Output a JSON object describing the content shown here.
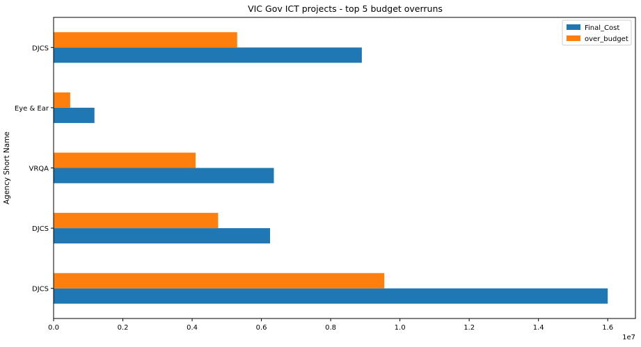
{
  "chart_data": {
    "type": "bar",
    "orientation": "horizontal",
    "title": "VIC Gov ICT projects - top 5 budget overruns",
    "xlabel": "",
    "ylabel": "Agency Short Name",
    "x_scale_label": "1e7",
    "xlim": [
      0,
      1.68
    ],
    "xticks": [
      0.0,
      0.2,
      0.4,
      0.6,
      0.8,
      1.0,
      1.2,
      1.4,
      1.6
    ],
    "xtick_labels": [
      "0.0",
      "0.2",
      "0.4",
      "0.6",
      "0.8",
      "1.0",
      "1.2",
      "1.4",
      "1.6"
    ],
    "categories": [
      "DJCS",
      "DJCS",
      "VRQA",
      "Eye & Ear",
      "DJCS"
    ],
    "series": [
      {
        "name": "Final_Cost",
        "color": "#1f77b4",
        "values": [
          1.6,
          0.625,
          0.636,
          0.118,
          0.89
        ]
      },
      {
        "name": "over_budget",
        "color": "#ff7f0e",
        "values": [
          0.955,
          0.475,
          0.41,
          0.048,
          0.53
        ]
      }
    ],
    "grid": false,
    "legend_position": "top-right"
  }
}
